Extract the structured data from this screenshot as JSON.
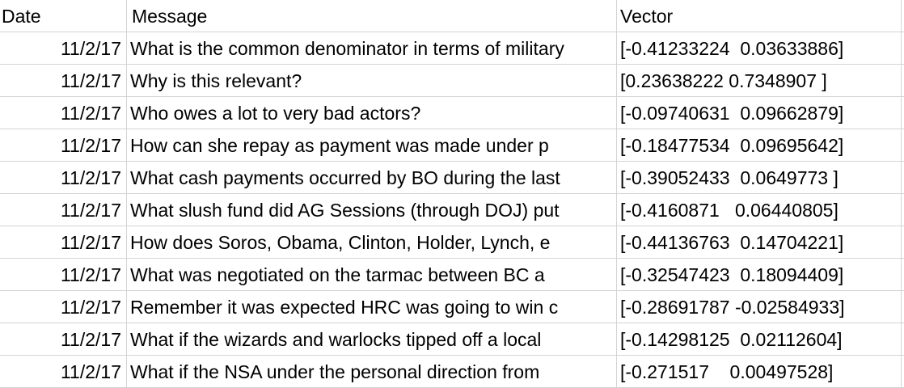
{
  "headers": {
    "date": "Date",
    "message": "Message",
    "vector": "Vector"
  },
  "rows": [
    {
      "date": "11/2/17",
      "message": "What is the common denominator in terms of military",
      "vector": "[-0.41233224  0.03633886]"
    },
    {
      "date": "11/2/17",
      "message": "Why is this relevant?",
      "vector": "[0.23638222 0.7348907 ]"
    },
    {
      "date": "11/2/17",
      "message": "Who owes a lot to very bad actors?",
      "vector": "[-0.09740631  0.09662879]"
    },
    {
      "date": "11/2/17",
      "message": "How can she repay as payment was made under p",
      "vector": "[-0.18477534  0.09695642]"
    },
    {
      "date": "11/2/17",
      "message": "What cash payments occurred by BO during the last",
      "vector": "[-0.39052433  0.0649773 ]"
    },
    {
      "date": "11/2/17",
      "message": "What slush fund did AG Sessions (through DOJ) put",
      "vector": "[-0.4160871   0.06440805]"
    },
    {
      "date": "11/2/17",
      "message": "How does Soros, Obama, Clinton, Holder, Lynch, e",
      "vector": "[-0.44136763  0.14704221]"
    },
    {
      "date": "11/2/17",
      "message": "What was negotiated on the tarmac between BC a",
      "vector": "[-0.32547423  0.18094409]"
    },
    {
      "date": "11/2/17",
      "message": "Remember it was expected HRC was going to win c",
      "vector": "[-0.28691787 -0.02584933]"
    },
    {
      "date": "11/2/17",
      "message": "What if the wizards and warlocks tipped off a local",
      "vector": "[-0.14298125  0.02112604]"
    },
    {
      "date": "11/2/17",
      "message": "What if the NSA under the personal direction from",
      "vector": "[-0.271517    0.00497528]"
    }
  ]
}
